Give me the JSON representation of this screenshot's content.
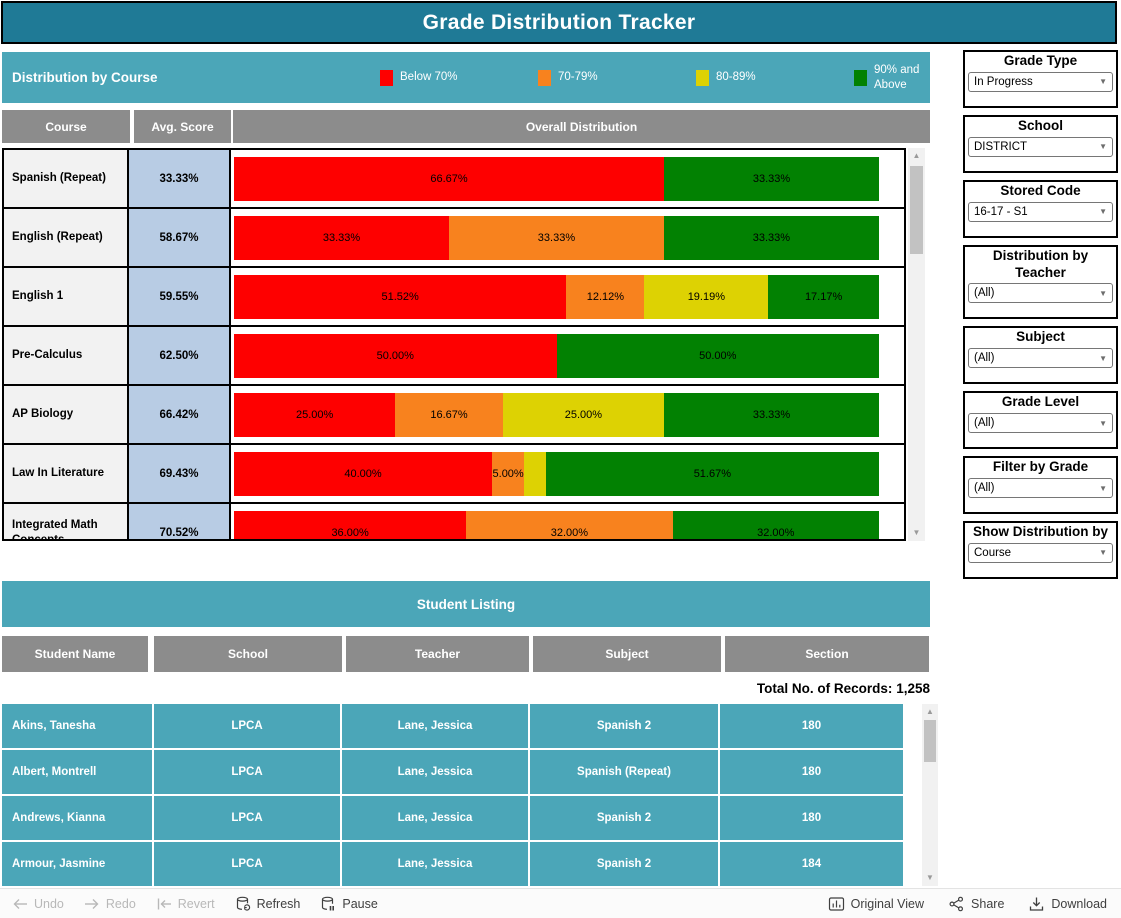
{
  "title": "Grade Distribution Tracker",
  "colors": {
    "red": "#fe0000",
    "orange": "#f8821e",
    "yellow": "#ddd203",
    "green": "#028102",
    "teal_dark": "#1f7a96",
    "teal_light": "#4ba6b8",
    "header_gray": "#8c8c8c",
    "avg_blue": "#b8cce4",
    "course_cell_gray": "#f2f2f2"
  },
  "icons": {
    "dropdown_caret": "▼",
    "scroll_up": "▲",
    "scroll_down": "▼"
  },
  "distribution_section": {
    "title": "Distribution by Course",
    "legend": [
      {
        "key": "red",
        "label": "Below 70%"
      },
      {
        "key": "orange",
        "label": "70-79%"
      },
      {
        "key": "yellow",
        "label": "80-89%"
      },
      {
        "key": "green",
        "label": "90% and Above"
      }
    ],
    "columns": [
      "Course",
      "Avg. Score",
      "Overall Distribution"
    ],
    "rows": [
      {
        "course": "Spanish (Repeat)",
        "avg": "33.33%",
        "segments": [
          {
            "color": "red",
            "value": 66.67,
            "label": "66.67%"
          },
          {
            "color": "green",
            "value": 33.33,
            "label": "33.33%"
          }
        ]
      },
      {
        "course": "English (Repeat)",
        "avg": "58.67%",
        "segments": [
          {
            "color": "red",
            "value": 33.33,
            "label": "33.33%"
          },
          {
            "color": "orange",
            "value": 33.33,
            "label": "33.33%"
          },
          {
            "color": "green",
            "value": 33.33,
            "label": "33.33%"
          }
        ]
      },
      {
        "course": "English 1",
        "avg": "59.55%",
        "segments": [
          {
            "color": "red",
            "value": 51.52,
            "label": "51.52%"
          },
          {
            "color": "orange",
            "value": 12.12,
            "label": "12.12%"
          },
          {
            "color": "yellow",
            "value": 19.19,
            "label": "19.19%"
          },
          {
            "color": "green",
            "value": 17.17,
            "label": "17.17%"
          }
        ]
      },
      {
        "course": "Pre-Calculus",
        "avg": "62.50%",
        "segments": [
          {
            "color": "red",
            "value": 50.0,
            "label": "50.00%"
          },
          {
            "color": "green",
            "value": 50.0,
            "label": "50.00%"
          }
        ]
      },
      {
        "course": "AP Biology",
        "avg": "66.42%",
        "segments": [
          {
            "color": "red",
            "value": 25.0,
            "label": "25.00%"
          },
          {
            "color": "orange",
            "value": 16.67,
            "label": "16.67%"
          },
          {
            "color": "yellow",
            "value": 25.0,
            "label": "25.00%"
          },
          {
            "color": "green",
            "value": 33.33,
            "label": "33.33%"
          }
        ]
      },
      {
        "course": "Law In Literature",
        "avg": "69.43%",
        "segments": [
          {
            "color": "red",
            "value": 40.0,
            "label": "40.00%"
          },
          {
            "color": "orange",
            "value": 5.0,
            "label": "5.00%"
          },
          {
            "color": "yellow",
            "value": 3.33,
            "label": ""
          },
          {
            "color": "green",
            "value": 51.67,
            "label": "51.67%"
          }
        ]
      },
      {
        "course": "Integrated Math Concepts",
        "avg": "70.52%",
        "segments": [
          {
            "color": "red",
            "value": 36.0,
            "label": "36.00%"
          },
          {
            "color": "orange",
            "value": 32.0,
            "label": "32.00%"
          },
          {
            "color": "green",
            "value": 32.0,
            "label": "32.00%"
          }
        ]
      }
    ]
  },
  "filters": [
    {
      "label": "Grade Type",
      "value": "In Progress"
    },
    {
      "label": "School",
      "value": "DISTRICT"
    },
    {
      "label": "Stored Code",
      "value": "16-17 - S1"
    },
    {
      "label": "Distribution by Teacher",
      "value": "(All)"
    },
    {
      "label": "Subject",
      "value": "(All)"
    },
    {
      "label": "Grade Level",
      "value": "(All)"
    },
    {
      "label": "Filter by Grade",
      "value": "(All)"
    },
    {
      "label": "Show Distribution by",
      "value": "Course"
    }
  ],
  "student_listing": {
    "title": "Student Listing",
    "columns": [
      "Student Name",
      "School",
      "Teacher",
      "Subject",
      "Section"
    ],
    "total_label": "Total No. of Records:",
    "total_value": "1,258",
    "rows": [
      {
        "name": "Akins, Tanesha",
        "school": "LPCA",
        "teacher": "Lane, Jessica",
        "subject": "Spanish 2",
        "section": "180"
      },
      {
        "name": "Albert, Montrell",
        "school": "LPCA",
        "teacher": "Lane, Jessica",
        "subject": "Spanish (Repeat)",
        "section": "180"
      },
      {
        "name": "Andrews, Kianna",
        "school": "LPCA",
        "teacher": "Lane, Jessica",
        "subject": "Spanish 2",
        "section": "180"
      },
      {
        "name": "Armour, Jasmine",
        "school": "LPCA",
        "teacher": "Lane, Jessica",
        "subject": "Spanish 2",
        "section": "184"
      }
    ]
  },
  "footer": {
    "left": [
      {
        "id": "undo",
        "label": "Undo",
        "enabled": false
      },
      {
        "id": "redo",
        "label": "Redo",
        "enabled": false
      },
      {
        "id": "revert",
        "label": "Revert",
        "enabled": false
      },
      {
        "id": "refresh",
        "label": "Refresh",
        "enabled": true
      },
      {
        "id": "pause",
        "label": "Pause",
        "enabled": true
      }
    ],
    "right": [
      {
        "id": "original-view",
        "label": "Original View",
        "enabled": true
      },
      {
        "id": "share",
        "label": "Share",
        "enabled": true
      },
      {
        "id": "download",
        "label": "Download",
        "enabled": true
      }
    ]
  }
}
